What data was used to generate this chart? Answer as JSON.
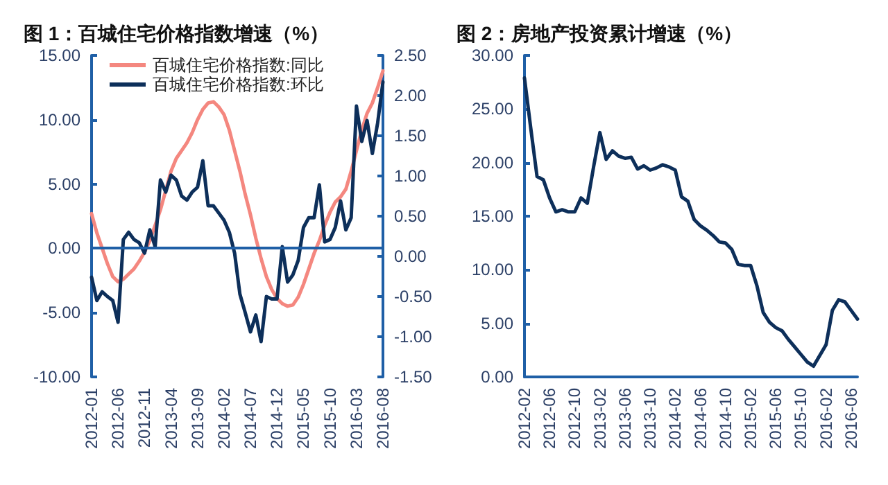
{
  "chart_data": [
    {
      "type": "line",
      "title": "图 1：百城住宅价格指数增速（%）",
      "categories": [
        "2012-01",
        null,
        null,
        null,
        null,
        "2012-06",
        null,
        null,
        null,
        null,
        "2012-11",
        null,
        null,
        null,
        null,
        "2013-04",
        null,
        null,
        null,
        null,
        "2013-09",
        null,
        null,
        null,
        null,
        "2014-02",
        null,
        null,
        null,
        null,
        "2014-07",
        null,
        null,
        null,
        null,
        "2014-12",
        null,
        null,
        null,
        null,
        "2015-05",
        null,
        null,
        null,
        null,
        "2015-10",
        null,
        null,
        null,
        null,
        "2016-03",
        null,
        null,
        null,
        null,
        "2016-08"
      ],
      "series": [
        {
          "name": "百城住宅价格指数:同比",
          "color": "#f4877f",
          "values": [
            2.7,
            1.2,
            0.0,
            -1.2,
            -2.2,
            -2.6,
            -2.4,
            -2.0,
            -1.6,
            -1.0,
            -0.3,
            0.6,
            1.8,
            3.0,
            4.5,
            6.0,
            7.0,
            7.6,
            8.2,
            9.0,
            10.0,
            10.8,
            11.3,
            11.4,
            11.0,
            10.4,
            9.2,
            7.6,
            6.0,
            4.2,
            2.6,
            0.8,
            -0.8,
            -2.2,
            -3.2,
            -3.9,
            -4.3,
            -4.5,
            -4.4,
            -3.8,
            -2.8,
            -1.6,
            -0.4,
            0.6,
            1.8,
            2.8,
            3.6,
            4.0,
            4.6,
            6.0,
            7.6,
            9.2,
            10.5,
            11.3,
            12.5,
            13.8
          ]
        },
        {
          "name": "百城住宅价格指数:环比",
          "color": "#0d2f5a",
          "axis": "y2",
          "values": [
            -0.26,
            -0.55,
            -0.44,
            -0.5,
            -0.55,
            -0.82,
            0.21,
            0.3,
            0.21,
            0.17,
            0.04,
            0.33,
            0.12,
            0.95,
            0.8,
            1.01,
            0.95,
            0.75,
            0.7,
            0.8,
            0.86,
            1.19,
            0.63,
            0.63,
            0.54,
            0.45,
            0.3,
            0.04,
            -0.47,
            -0.7,
            -0.94,
            -0.73,
            -1.06,
            -0.5,
            -0.53,
            -0.53,
            0.12,
            -0.32,
            -0.23,
            -0.05,
            0.36,
            0.48,
            0.48,
            0.89,
            0.18,
            0.21,
            0.36,
            0.69,
            0.33,
            0.48,
            1.87,
            1.43,
            1.69,
            1.28,
            1.66,
            2.17
          ]
        }
      ],
      "ylim": [
        -10,
        15
      ],
      "yticks": [
        {
          "value": -10,
          "label": "-10.00"
        },
        {
          "value": -5,
          "label": "-5.00"
        },
        {
          "value": 0,
          "label": "0.00"
        },
        {
          "value": 5,
          "label": "5.00"
        },
        {
          "value": 10,
          "label": "10.00"
        },
        {
          "value": 15,
          "label": "15.00"
        }
      ],
      "y2lim": [
        -1.5,
        2.5
      ],
      "y2ticks": [
        {
          "value": -1.5,
          "label": "-1.50"
        },
        {
          "value": -1,
          "label": "-1.00"
        },
        {
          "value": -0.5,
          "label": "-0.50"
        },
        {
          "value": 0,
          "label": "0.00"
        },
        {
          "value": 0.5,
          "label": "0.50"
        },
        {
          "value": 1,
          "label": "1.00"
        },
        {
          "value": 1.5,
          "label": "1.50"
        },
        {
          "value": 2,
          "label": "2.00"
        },
        {
          "value": 2.5,
          "label": "2.50"
        }
      ],
      "ref_lines": [
        {
          "axis": "y",
          "value": 0,
          "color": "#1f5fa6"
        }
      ],
      "legend": "top left",
      "grid": false,
      "marker": "none"
    },
    {
      "type": "line",
      "title": "图 2：房地产投资累计增速（%）",
      "categories": [
        "2012-02",
        null,
        null,
        null,
        "2012-06",
        null,
        null,
        null,
        "2012-10",
        null,
        null,
        null,
        "2013-02",
        null,
        null,
        null,
        "2013-06",
        null,
        null,
        null,
        "2013-10",
        null,
        null,
        null,
        "2014-02",
        null,
        null,
        null,
        "2014-06",
        null,
        null,
        null,
        "2014-10",
        null,
        null,
        null,
        "2015-02",
        null,
        null,
        null,
        "2015-06",
        null,
        null,
        null,
        "2015-10",
        null,
        null,
        null,
        "2016-02",
        null,
        null,
        null,
        "2016-06",
        null
      ],
      "series": [
        {
          "color": "#0d2f5a",
          "values": [
            27.9,
            23.2,
            18.7,
            18.4,
            16.7,
            15.4,
            15.6,
            15.4,
            15.4,
            16.7,
            16.2,
            19.6,
            22.8,
            20.3,
            21.1,
            20.6,
            20.4,
            20.5,
            19.4,
            19.7,
            19.3,
            19.5,
            19.8,
            19.6,
            19.3,
            16.8,
            16.4,
            14.7,
            14.1,
            13.7,
            13.2,
            12.6,
            12.5,
            11.9,
            10.5,
            10.4,
            10.4,
            8.5,
            6.0,
            5.1,
            4.6,
            4.3,
            3.5,
            2.8,
            2.1,
            1.4,
            1.0,
            2.0,
            3.0,
            6.2,
            7.2,
            7.0,
            6.2,
            5.4
          ]
        }
      ],
      "ylim": [
        0,
        30
      ],
      "yticks": [
        {
          "value": 0,
          "label": "0.00"
        },
        {
          "value": 5,
          "label": "5.00"
        },
        {
          "value": 10,
          "label": "10.00"
        },
        {
          "value": 15,
          "label": "15.00"
        },
        {
          "value": 20,
          "label": "20.00"
        },
        {
          "value": 25,
          "label": "25.00"
        },
        {
          "value": 30,
          "label": "30.00"
        }
      ],
      "grid": false,
      "marker": "none"
    }
  ]
}
